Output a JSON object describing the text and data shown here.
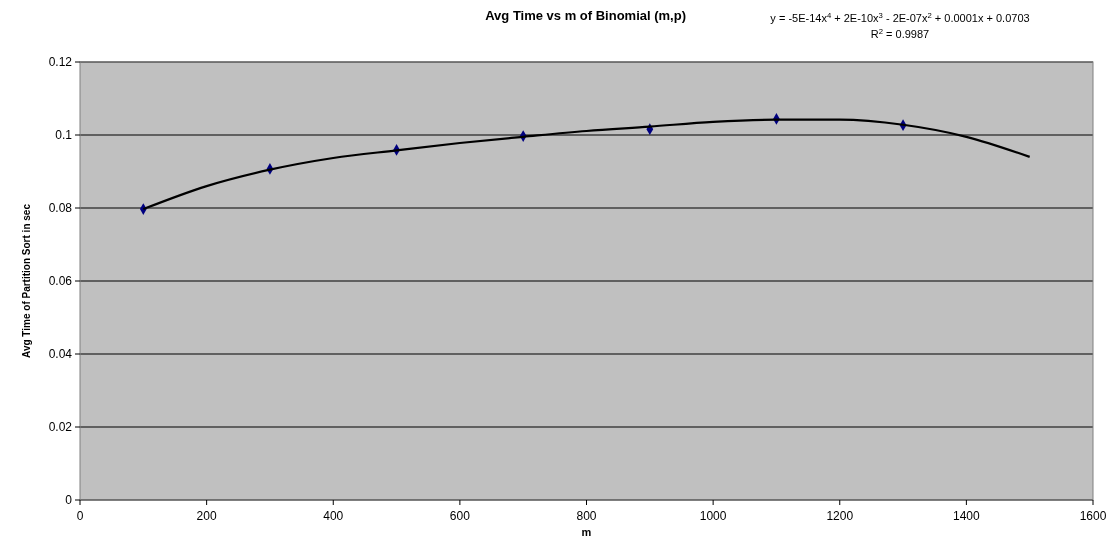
{
  "chart_data": {
    "type": "scatter",
    "title": "Avg Time vs m of Binomial (m,p)",
    "xlabel": "m",
    "ylabel": "Avg Time of Partition Sort in sec",
    "annotations": [
      "y = -5E-14x$^{4}$ + 2E-10x$^{3}$ - 2E-07x$^{2}$ + 0.0001x + 0.0703",
      "R$^{2}$ = 0.9987"
    ],
    "x": [
      100,
      300,
      500,
      700,
      900,
      1100,
      1300
    ],
    "series": [
      {
        "color": "#000080",
        "marker": "diamond",
        "values": [
          0.0797,
          0.0907,
          0.0959,
          0.0997,
          0.1016,
          0.1044,
          0.1027
        ]
      },
      {
        "type": "line",
        "color": "#000000",
        "marker": "none",
        "line_style": "solid",
        "x": [
          100,
          200,
          300,
          400,
          500,
          600,
          700,
          800,
          900,
          1000,
          1100,
          1200,
          1300,
          1400,
          1500
        ],
        "values": [
          0.0797,
          0.086,
          0.0905,
          0.0937,
          0.0958,
          0.0978,
          0.0995,
          0.1011,
          0.1023,
          0.1036,
          0.1042,
          0.1042,
          0.1028,
          0.0995,
          0.094
        ]
      }
    ],
    "xlim": [
      0,
      1600
    ],
    "xticks": [
      0,
      200,
      400,
      600,
      800,
      1000,
      1200,
      1400,
      1600
    ],
    "ylim": [
      0,
      0.12
    ],
    "yticks": [
      0,
      0.02,
      0.04,
      0.06,
      0.08,
      0.1,
      0.12
    ],
    "grid": "y"
  }
}
